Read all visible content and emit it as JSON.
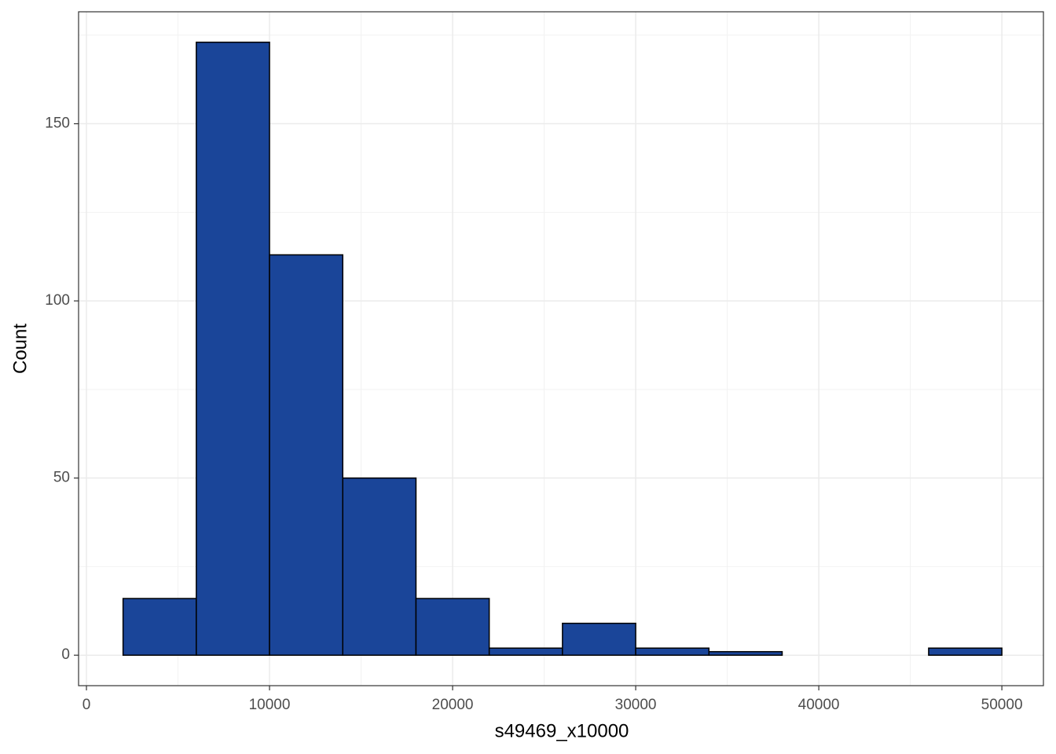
{
  "chart_data": {
    "type": "histogram",
    "x_label": "s49469_x10000",
    "y_label": "Count",
    "bins": [
      2000,
      6000,
      10000,
      14000,
      18000,
      22000,
      26000,
      30000,
      34000,
      38000,
      42000,
      46000,
      50000
    ],
    "values": [
      16,
      173,
      113,
      50,
      16,
      2,
      9,
      2,
      1,
      0,
      0,
      2
    ],
    "color": "#1a4599",
    "edgecolor": "#000000",
    "xlim": [
      -430,
      52270
    ],
    "ylim": [
      -8.6,
      181.6
    ],
    "xticks": [
      0,
      10000,
      20000,
      30000,
      40000,
      50000
    ],
    "yticks": [
      0,
      50,
      100,
      150
    ],
    "xminorticks": [
      5000,
      15000,
      25000,
      35000,
      45000
    ],
    "yminorticks": [
      25,
      75,
      125,
      175
    ],
    "grid": true
  }
}
